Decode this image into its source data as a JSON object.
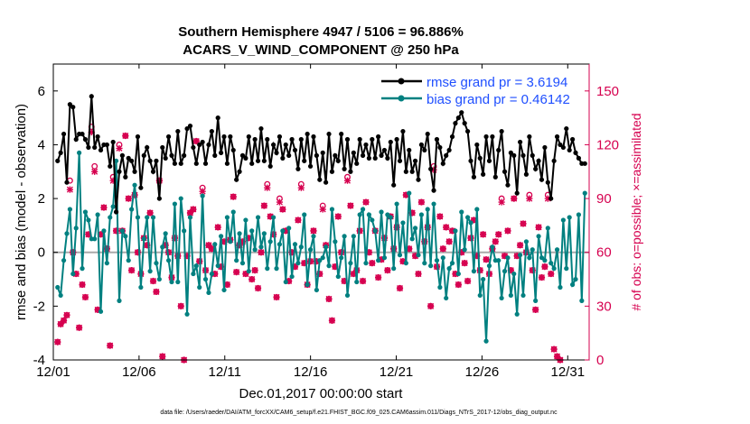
{
  "chart_data": {
    "type": "line",
    "title_line1": "Southern Hemisphere 4947 / 5106 = 96.886%",
    "title_line2": "ACARS_V_WIND_COMPONENT @ 250 hPa",
    "xlabel": "Dec.01,2017 00:00:00 start",
    "ylabel": "rmse and bias (model - observation)",
    "y2label": "# of obs: o=possible; ×=assimilated",
    "footnote": "data file: /Users/raeder/DAI/ATM_forcXX/CAM6_setup/f.e21.FHIST_BGC.f09_025.CAM6assim.011/Diags_NTrS_2017-12/obs_diag_output.nc",
    "x_ticks": [
      "12/01",
      "12/06",
      "12/11",
      "12/16",
      "12/21",
      "12/26",
      "12/31"
    ],
    "x_tick_days": [
      0,
      5,
      10,
      15,
      20,
      25,
      30
    ],
    "xlim": [
      0,
      31.25
    ],
    "ylim": [
      -4,
      7
    ],
    "y_ticks": [
      "-4",
      "-2",
      "0",
      "2",
      "4",
      "6"
    ],
    "y2lim": [
      0,
      165
    ],
    "y2_ticks": [
      "0",
      "30",
      "60",
      "90",
      "120",
      "150"
    ],
    "legend": [
      {
        "label": "rmse grand pr = 3.6194",
        "color": "#000000"
      },
      {
        "label": "bias grand pr = 0.46142",
        "color": "#008080"
      }
    ],
    "colors": {
      "rmse": "#000000",
      "bias": "#008080",
      "counts": "#d6004f",
      "zero": "#aaaaaa"
    },
    "series": [
      {
        "name": "rmse",
        "values": [
          3.4,
          3.7,
          4.4,
          2.6,
          5.5,
          5.4,
          4.2,
          4.4,
          4.4,
          4.2,
          3.9,
          5.8,
          3.9,
          4.3,
          3.8,
          4.0,
          4.0,
          3.2,
          4.1,
          1.5,
          3.0,
          3.6,
          2.8,
          3.5,
          3.4,
          3.0,
          4.3,
          2.4,
          3.6,
          3.9,
          3.4,
          3.0,
          3.4,
          2.0,
          3.9,
          3.5,
          4.3,
          3.6,
          3.3,
          4.5,
          3.3,
          3.6,
          4.6,
          4.7,
          3.9,
          3.3,
          4.0,
          4.1,
          3.3,
          4.0,
          4.5,
          3.6,
          5.0,
          3.7,
          4.3,
          3.3,
          4.3,
          3.8,
          2.7,
          3.0,
          3.6,
          3.5,
          4.3,
          3.3,
          4.2,
          3.4,
          4.6,
          3.4,
          4.2,
          3.2,
          4.0,
          3.7,
          4.3,
          3.5,
          4.0,
          3.6,
          4.2,
          3.8,
          3.1,
          4.2,
          3.4,
          4.4,
          3.2,
          4.3,
          3.6,
          2.7,
          3.7,
          2.6,
          4.4,
          3.0,
          3.6,
          3.4,
          4.4,
          3.1,
          4.2,
          3.0,
          3.7,
          3.3,
          4.2,
          3.6,
          4.0,
          3.5,
          4.2,
          3.5,
          4.3,
          3.6,
          3.8,
          3.5,
          4.1,
          2.5,
          4.2,
          3.4,
          4.5,
          3.0,
          3.8,
          3.0,
          3.4,
          2.7,
          4.0,
          3.8,
          4.4,
          3.1,
          2.3,
          4.2,
          3.9,
          3.3,
          3.6,
          3.8,
          4.3,
          4.8,
          5.0,
          5.2,
          4.8,
          4.5,
          3.4,
          2.8,
          4.0,
          3.5,
          2.9,
          4.3,
          3.4,
          4.3,
          2.8,
          3.8,
          4.5,
          3.0,
          2.5,
          3.7,
          3.6,
          2.2,
          4.1,
          3.6,
          2.9,
          4.3,
          3.6,
          3.1,
          3.4,
          2.7,
          3.9,
          2.6,
          2.0,
          3.4,
          4.3,
          4.0,
          3.9,
          4.6,
          3.8,
          4.2,
          3.7,
          3.5,
          3.3,
          3.3
        ]
      },
      {
        "name": "bias",
        "values": [
          -1.3,
          -1.6,
          -0.3,
          0.7,
          1.6,
          -0.8,
          0.9,
          3.7,
          -0.6,
          1.5,
          1.2,
          0.5,
          0.5,
          1.4,
          -2.2,
          0.8,
          -0.4,
          1.3,
          1.7,
          3.4,
          -1.8,
          0.8,
          0.6,
          -0.3,
          1.6,
          2.5,
          1.3,
          -1.3,
          0.5,
          1.3,
          -0.7,
          1.3,
          -0.4,
          -1.0,
          0.2,
          0.7,
          -0.3,
          -1.1,
          1.8,
          -1.1,
          2.0,
          0.8,
          -2.3,
          1.3,
          -0.8,
          -0.5,
          -1.3,
          2.1,
          -1.0,
          -1.5,
          -0.8,
          0.3,
          -0.5,
          0.6,
          -1.4,
          1.3,
          0.4,
          1.5,
          -0.3,
          0.7,
          -0.4,
          1.2,
          -0.7,
          0.8,
          0.1,
          1.3,
          0.2,
          0.7,
          -0.6,
          0.4,
          1.3,
          -0.6,
          0.3,
          0.8,
          -1.1,
          0.9,
          -0.9,
          0.3,
          -0.4,
          0.2,
          1.4,
          -1.2,
          0.1,
          0.6,
          -1.4,
          -0.3,
          -0.2,
          0.2,
          -0.5,
          1.6,
          0.4,
          -0.9,
          -0.2,
          0.6,
          -1.6,
          -0.4,
          0.6,
          -1.1,
          1.4,
          1.6,
          -0.4,
          1.4,
          1.2,
          0.8,
          -0.3,
          1.5,
          -0.2,
          1.4,
          1.3,
          -0.6,
          1.8,
          -0.1,
          1.1,
          -0.4,
          2.2,
          0.5,
          0.9,
          -0.1,
          1.4,
          -0.4,
          1.6,
          -0.5,
          1.8,
          -0.3,
          -1.3,
          -0.2,
          -1.7,
          -0.6,
          -0.4,
          0.8,
          -0.8,
          1.5,
          0.1,
          1.3,
          1.1,
          -0.7,
          1.6,
          -1.6,
          -1.0,
          -3.3,
          -0.5,
          0.2,
          -0.3,
          -0.3,
          -1.7,
          -0.7,
          -0.2,
          -1.6,
          -0.8,
          -2.3,
          -0.1,
          -1.6,
          0.4,
          -0.2,
          0.1,
          -1.8,
          0.6,
          -0.2,
          -0.3,
          0.9,
          -0.4,
          -0.6,
          0.1,
          -1.3,
          1.2,
          -0.6,
          1.3,
          -1.2,
          -1.0,
          1.4,
          -1.8,
          2.2
        ]
      }
    ],
    "obs_counts": {
      "possible": [
        10,
        20,
        22,
        25,
        100,
        60,
        48,
        18,
        42,
        35,
        70,
        130,
        108,
        28,
        70,
        85,
        62,
        8,
        102,
        72,
        120,
        72,
        125,
        90,
        50,
        92,
        60,
        48,
        68,
        64,
        82,
        44,
        38,
        100,
        2,
        64,
        60,
        46,
        68,
        58,
        30,
        0,
        58,
        82,
        84,
        122,
        55,
        96,
        50,
        64,
        62,
        48,
        74,
        52,
        66,
        42,
        67,
        91,
        49,
        64,
        66,
        48,
        68,
        45,
        50,
        40,
        60,
        86,
        98,
        80,
        70,
        35,
        90,
        84,
        72,
        44,
        60,
        52,
        78,
        98,
        54,
        42,
        55,
        72,
        55,
        48,
        86,
        64,
        34,
        22,
        52,
        80,
        60,
        44,
        102,
        86,
        48,
        50,
        72,
        44,
        88,
        60,
        54,
        72,
        46,
        56,
        68,
        50,
        80,
        62,
        74,
        40,
        55,
        92,
        62,
        82,
        58,
        48,
        88,
        66,
        74,
        30,
        108,
        52,
        80,
        62,
        74,
        66,
        72,
        48,
        42,
        60,
        54,
        44,
        68,
        78,
        58,
        50,
        70,
        56,
        48,
        62,
        66,
        70,
        90,
        58,
        72,
        50,
        90,
        58,
        64,
        76,
        60,
        92,
        50,
        28,
        74,
        46,
        52,
        92,
        48,
        6,
        2,
        0
      ],
      "assimilated": [
        10,
        20,
        22,
        25,
        95,
        60,
        48,
        18,
        42,
        35,
        70,
        127,
        105,
        28,
        70,
        85,
        62,
        8,
        100,
        72,
        118,
        72,
        125,
        90,
        50,
        92,
        60,
        48,
        68,
        64,
        82,
        44,
        38,
        100,
        2,
        64,
        60,
        46,
        68,
        58,
        30,
        0,
        58,
        82,
        84,
        122,
        55,
        94,
        50,
        64,
        62,
        48,
        74,
        52,
        66,
        42,
        67,
        91,
        49,
        64,
        66,
        48,
        68,
        45,
        50,
        40,
        60,
        86,
        96,
        80,
        70,
        35,
        88,
        84,
        72,
        44,
        60,
        52,
        78,
        96,
        54,
        42,
        55,
        72,
        55,
        48,
        84,
        64,
        34,
        22,
        52,
        80,
        60,
        44,
        100,
        86,
        48,
        50,
        72,
        44,
        88,
        60,
        54,
        72,
        46,
        56,
        68,
        50,
        80,
        62,
        74,
        40,
        55,
        92,
        62,
        82,
        58,
        48,
        88,
        66,
        74,
        30,
        106,
        52,
        80,
        62,
        74,
        66,
        72,
        48,
        42,
        60,
        54,
        44,
        68,
        78,
        58,
        50,
        70,
        56,
        48,
        62,
        66,
        70,
        88,
        58,
        72,
        50,
        90,
        58,
        64,
        76,
        60,
        90,
        50,
        28,
        74,
        46,
        52,
        90,
        48,
        6,
        2,
        0
      ]
    }
  }
}
